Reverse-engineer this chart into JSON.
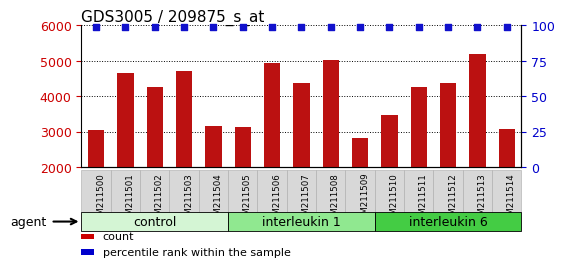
{
  "title": "GDS3005 / 209875_s_at",
  "samples": [
    "GSM211500",
    "GSM211501",
    "GSM211502",
    "GSM211503",
    "GSM211504",
    "GSM211505",
    "GSM211506",
    "GSM211507",
    "GSM211508",
    "GSM211509",
    "GSM211510",
    "GSM211511",
    "GSM211512",
    "GSM211513",
    "GSM211514"
  ],
  "counts": [
    3050,
    4650,
    4250,
    4720,
    3160,
    3130,
    4950,
    4380,
    5030,
    2820,
    3470,
    4270,
    4380,
    5200,
    3080
  ],
  "groups": [
    {
      "label": "control",
      "start": 0,
      "end": 5,
      "color": "#d4f5d4"
    },
    {
      "label": "interleukin 1",
      "start": 5,
      "end": 10,
      "color": "#90e890"
    },
    {
      "label": "interleukin 6",
      "start": 10,
      "end": 15,
      "color": "#44cc44"
    }
  ],
  "bar_color": "#bb1111",
  "dot_color": "#1111cc",
  "ylim_left": [
    2000,
    6000
  ],
  "ylim_right": [
    0,
    100
  ],
  "yticks_left": [
    2000,
    3000,
    4000,
    5000,
    6000
  ],
  "yticks_right": [
    0,
    25,
    50,
    75,
    100
  ],
  "left_tick_color": "#cc0000",
  "right_tick_color": "#0000cc",
  "title_fontsize": 11,
  "tick_fontsize": 9,
  "legend_items": [
    {
      "label": "count",
      "color": "#cc0000"
    },
    {
      "label": "percentile rank within the sample",
      "color": "#0000cc"
    }
  ],
  "agent_label": "agent",
  "group_label_fontsize": 9,
  "bar_width": 0.55
}
